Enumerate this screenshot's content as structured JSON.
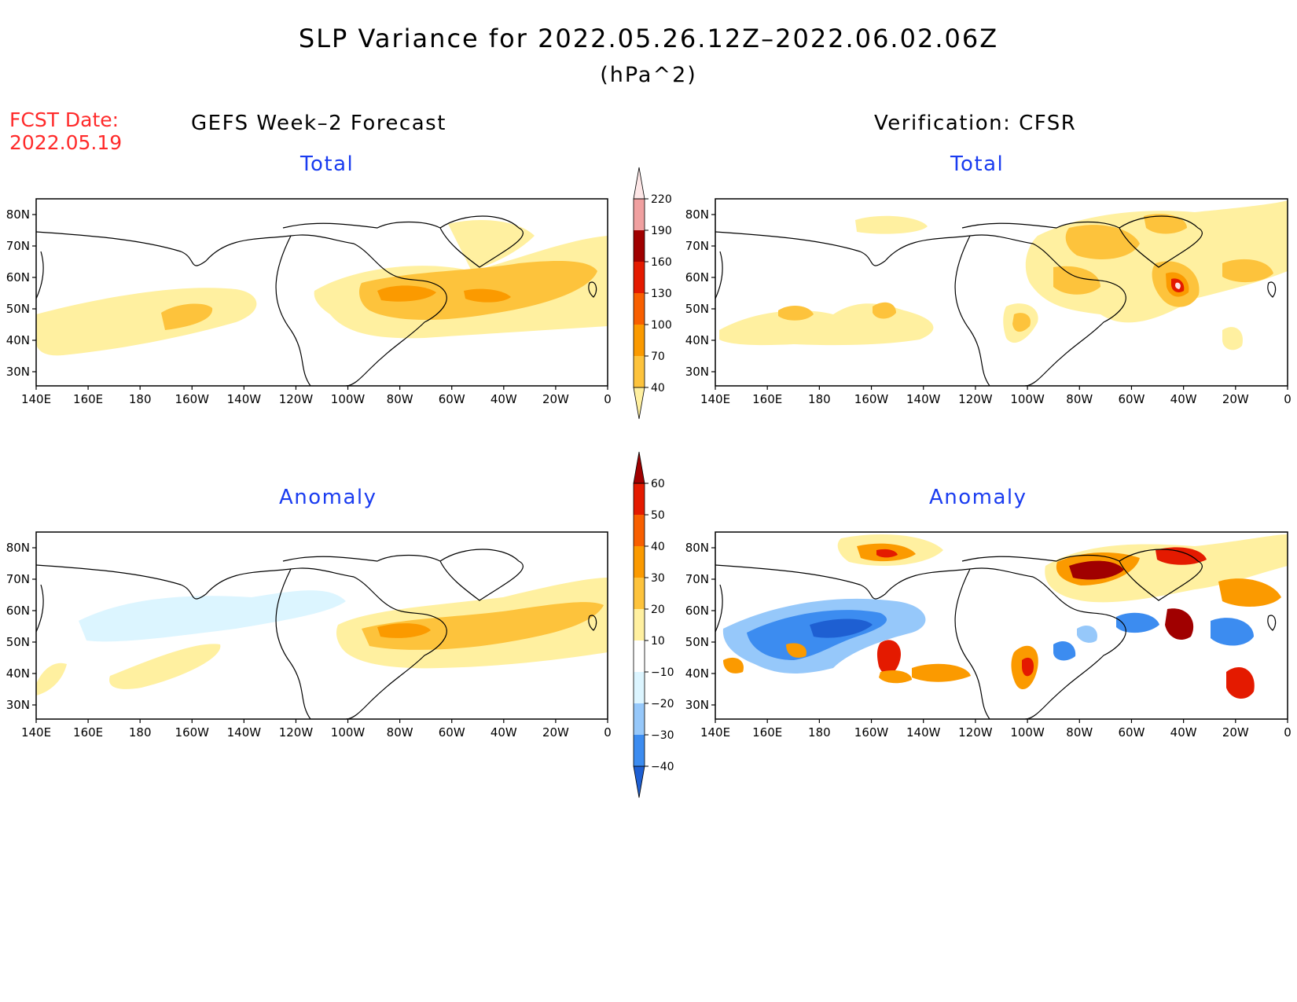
{
  "title": "SLP Variance for 2022.05.26.12Z–2022.06.02.06Z",
  "units": "(hPa^2)",
  "forecast_date": {
    "label": "FCST Date:",
    "value": "2022.05.19"
  },
  "columns": {
    "left": "GEFS Week–2 Forecast",
    "right": "Verification: CFSR"
  },
  "panels": {
    "top_left": "Total",
    "top_right": "Total",
    "bottom_left": "Anomaly",
    "bottom_right": "Anomaly"
  },
  "lat_labels": [
    "80N",
    "70N",
    "60N",
    "50N",
    "40N",
    "30N"
  ],
  "lon_labels": [
    "140E",
    "160E",
    "180",
    "160W",
    "140W",
    "120W",
    "100W",
    "80W",
    "60W",
    "40W",
    "20W",
    "0"
  ],
  "colorbars": {
    "total": {
      "levels": [
        "40",
        "70",
        "100",
        "130",
        "160",
        "190",
        "220"
      ],
      "colors": [
        "#fff0a0",
        "#fdc33c",
        "#fb9a00",
        "#f85f00",
        "#e41a00",
        "#a00000",
        "#f0a0a0",
        "#fde6e6"
      ]
    },
    "anomaly": {
      "levels": [
        "−40",
        "−30",
        "−20",
        "−10",
        "10",
        "20",
        "30",
        "40",
        "50",
        "60"
      ],
      "colors": [
        "#1e5fd2",
        "#3c8cf0",
        "#96c8fa",
        "#dcf5ff",
        "#ffffff",
        "#fff0a0",
        "#fdc33c",
        "#fb9a00",
        "#f85f00",
        "#e41a00",
        "#a00000"
      ]
    }
  }
}
